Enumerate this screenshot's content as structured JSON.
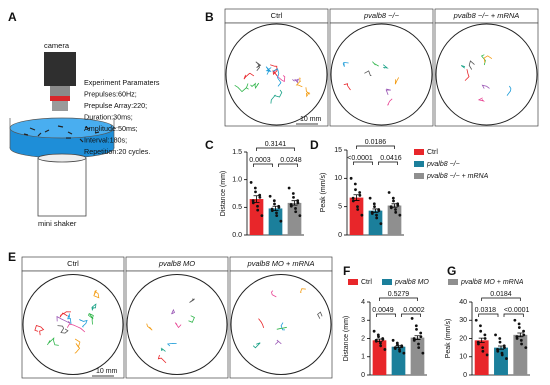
{
  "panel_labels": [
    "A",
    "B",
    "C",
    "D",
    "E",
    "F",
    "G"
  ],
  "setup": {
    "camera": "camera",
    "parameters": [
      "Experiment Paramaters",
      "Prepulses:60Hz;",
      "Prepulse Array:220;",
      "Duration:30ms;",
      "Amplitude:50ms;",
      "Interval:180s;",
      "Repetition:20 cycles."
    ],
    "shaker": "mini shaker"
  },
  "tracks_b": {
    "titles": [
      "Ctrl",
      "pvalb8 −/−",
      "pvalb8 −/− + mRNA"
    ],
    "scale": "10 mm"
  },
  "tracks_e": {
    "titles": [
      "Ctrl",
      "pvalb8 MO",
      "pvalb8 MO + mRNA"
    ],
    "scale": "10 mm"
  },
  "chart_data": [
    {
      "type": "bar",
      "ylabel": "Distance (mm)",
      "colors": [
        "#e8262a",
        "#1b7f9b",
        "#8f8f8f"
      ],
      "values": [
        0.65,
        0.48,
        0.58
      ],
      "errors": [
        0.06,
        0.04,
        0.04
      ],
      "points": [
        [
          0.95,
          0.85,
          0.78,
          0.72,
          0.68,
          0.62,
          0.58,
          0.52,
          0.45,
          0.35
        ],
        [
          0.7,
          0.62,
          0.56,
          0.52,
          0.5,
          0.47,
          0.44,
          0.4,
          0.35,
          0.25
        ],
        [
          0.85,
          0.75,
          0.68,
          0.62,
          0.58,
          0.55,
          0.52,
          0.48,
          0.42,
          0.35
        ]
      ],
      "ylim": [
        0,
        1.5
      ],
      "yticks": [
        {
          "value": 0,
          "label": "0.0"
        },
        {
          "value": 0.5,
          "label": "0.5"
        },
        {
          "value": 1,
          "label": "1.0"
        },
        {
          "value": 1.5,
          "label": "1.5"
        }
      ],
      "comparisons": [
        {
          "groups": [
            0,
            2
          ],
          "label": "0.3141"
        },
        {
          "groups": [
            0,
            1
          ],
          "label": "0.0003"
        },
        {
          "groups": [
            1,
            2
          ],
          "label": "0.0248"
        }
      ]
    },
    {
      "type": "bar",
      "ylabel": "Peak (mm/s)",
      "categories": [
        "Ctrl",
        "pvalb8 −/−",
        "pvalb8 −/− + mRNA"
      ],
      "legend": "right",
      "colors": [
        "#e8262a",
        "#1b7f9b",
        "#8f8f8f"
      ],
      "values": [
        6.6,
        4.3,
        5.2
      ],
      "errors": [
        0.5,
        0.3,
        0.3
      ],
      "points": [
        [
          10,
          9,
          8,
          7.5,
          7,
          6.5,
          6,
          5,
          4.5,
          3.5
        ],
        [
          6.5,
          5.5,
          5,
          4.5,
          4.3,
          4,
          3.8,
          3.5,
          3,
          2
        ],
        [
          7.5,
          6.5,
          6,
          5.5,
          5.2,
          5,
          4.8,
          4.5,
          4,
          3.5
        ]
      ],
      "ylim": [
        0,
        15
      ],
      "yticks": [
        0,
        5,
        10,
        15
      ],
      "comparisons": [
        {
          "groups": [
            0,
            2
          ],
          "label": "0.0186"
        },
        {
          "groups": [
            0,
            1
          ],
          "label": "<0.0001"
        },
        {
          "groups": [
            1,
            2
          ],
          "label": "0.0416"
        }
      ]
    },
    {
      "type": "bar",
      "ylabel": "Distance (mm)",
      "categories": [
        "Ctrl",
        "pvalb8 MO",
        "pvalb8 MO + mRNA"
      ],
      "legend": "top",
      "colors": [
        "#e8262a",
        "#1b7f9b",
        "#8f8f8f"
      ],
      "values": [
        1.9,
        1.55,
        2.05
      ],
      "errors": [
        0.07,
        0.05,
        0.1
      ],
      "points": [
        [
          2.4,
          2.2,
          2.1,
          2,
          1.95,
          1.9,
          1.85,
          1.75,
          1.6,
          1.4
        ],
        [
          1.9,
          1.75,
          1.65,
          1.6,
          1.55,
          1.5,
          1.45,
          1.4,
          1.3,
          1.2
        ],
        [
          3.1,
          2.7,
          2.5,
          2.3,
          2.1,
          2,
          1.9,
          1.7,
          1.5,
          1.2
        ]
      ],
      "ylim": [
        0,
        4
      ],
      "yticks": [
        0,
        1,
        2,
        3,
        4
      ],
      "comparisons": [
        {
          "groups": [
            0,
            2
          ],
          "label": "0.5279"
        },
        {
          "groups": [
            0,
            1
          ],
          "label": "0.0049"
        },
        {
          "groups": [
            1,
            2
          ],
          "label": "0.0002"
        }
      ]
    },
    {
      "type": "bar",
      "ylabel": "Peak (mm/s)",
      "colors": [
        "#e8262a",
        "#1b7f9b",
        "#8f8f8f"
      ],
      "values": [
        19,
        15,
        22
      ],
      "errors": [
        1.2,
        0.9,
        1
      ],
      "points": [
        [
          30,
          27,
          24,
          22,
          20,
          18,
          17,
          15,
          13,
          11
        ],
        [
          22,
          20,
          18,
          16,
          15,
          14,
          13,
          12,
          11,
          9
        ],
        [
          30,
          28,
          26,
          24,
          22,
          21,
          20,
          19,
          17,
          15
        ]
      ],
      "ylim": [
        0,
        40
      ],
      "yticks": [
        0,
        10,
        20,
        30,
        40
      ],
      "comparisons": [
        {
          "groups": [
            0,
            2
          ],
          "label": "0.0184"
        },
        {
          "groups": [
            0,
            1
          ],
          "label": "0.0318"
        },
        {
          "groups": [
            1,
            2
          ],
          "label": "<0.0001"
        }
      ]
    }
  ]
}
